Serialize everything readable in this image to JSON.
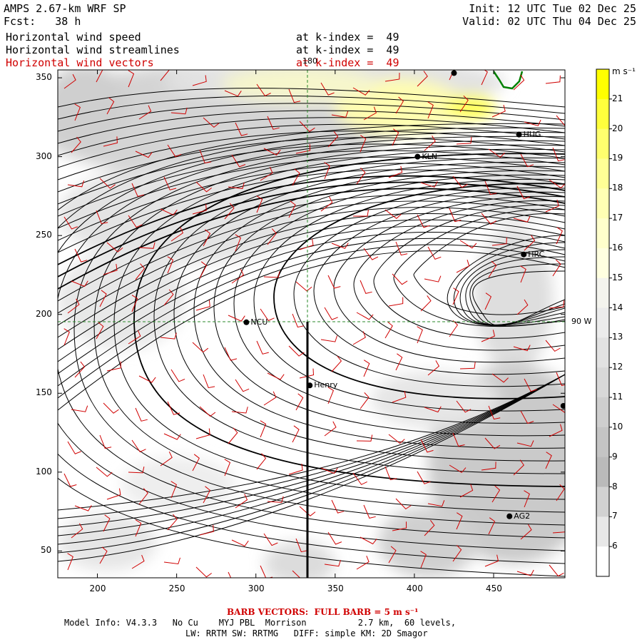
{
  "header": {
    "model_title": "AMPS 2.67-km WRF SP",
    "forecast": "Fcst:   38 h",
    "init": "Init: 12 UTC Tue 02 Dec 25",
    "valid": "Valid: 02 UTC Thu 04 Dec 25",
    "fields": [
      {
        "name": "Horizontal wind speed",
        "level": "at k-index =  49",
        "color": "#000000"
      },
      {
        "name": "Horizontal wind streamlines",
        "level": "at k-index =  49",
        "color": "#000000"
      },
      {
        "name": "Horizontal wind vectors",
        "level": "at k-index =  49",
        "color": "#d00000"
      }
    ]
  },
  "map": {
    "x_ticks": [
      200,
      250,
      300,
      350,
      400,
      450
    ],
    "y_ticks": [
      50,
      100,
      150,
      200,
      250,
      300,
      350
    ],
    "x_range": [
      175,
      495
    ],
    "y_range": [
      33,
      355
    ],
    "meridian_label": "180",
    "parallel_label": "90 W",
    "stations": [
      {
        "name": "NCU",
        "x": 294,
        "y": 195
      },
      {
        "name": "Henry",
        "x": 334,
        "y": 155
      },
      {
        "name": "KLN",
        "x": 402,
        "y": 300
      },
      {
        "name": "HRC",
        "x": 469,
        "y": 238
      },
      {
        "name": "AG2",
        "x": 460,
        "y": 72
      },
      {
        "name": "HUG",
        "x": 466,
        "y": 314
      },
      {
        "name": "",
        "x": 425,
        "y": 353
      },
      {
        "name": "",
        "x": 494,
        "y": 142
      }
    ]
  },
  "colorbar": {
    "unit": "m s⁻¹",
    "labels": [
      "21",
      "20",
      "19",
      "18",
      "17",
      "16",
      "15",
      "14",
      "13",
      "12",
      "11",
      "10",
      "9",
      "8",
      "7",
      "6"
    ],
    "colors": [
      "#ffff00",
      "#ffff3c",
      "#ffff6e",
      "#ffff96",
      "#ffffb4",
      "#ffffcc",
      "#ffffe0",
      "#f4f4ee",
      "#ececec",
      "#e2e2e2",
      "#d8d8d8",
      "#cecece",
      "#c4c4c4",
      "#bababa",
      "#d2d2d2",
      "#e8e8e8",
      "#ffffff"
    ]
  },
  "footer": {
    "barb_note": "BARB VECTORS:  FULL BARB = 5 m s⁻¹",
    "model_info": "Model Info: V4.3.3   No Cu    MYJ PBL  Morrison          2.7 km,  60 levels,",
    "physics": "LW: RRTM SW: RRTMG   DIFF: simple KM: 2D Smagor"
  }
}
